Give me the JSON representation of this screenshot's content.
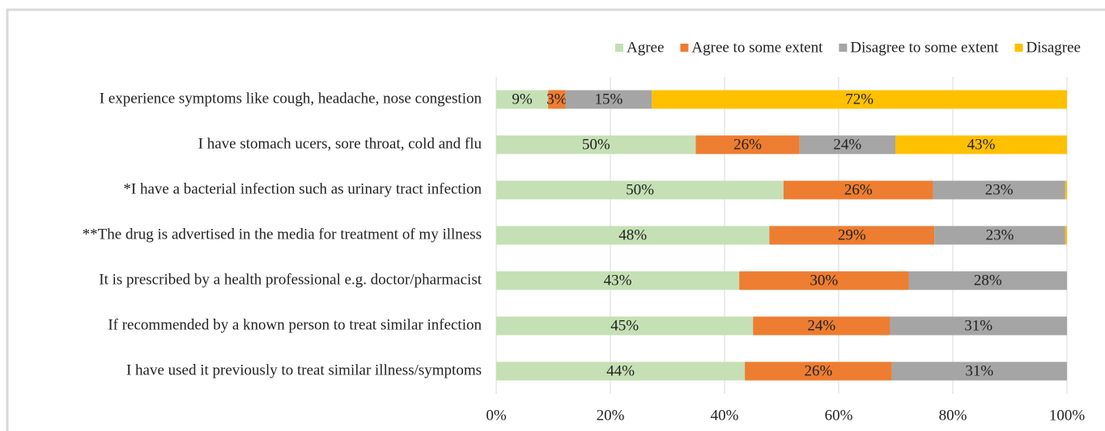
{
  "chart_data": {
    "type": "bar",
    "orientation": "horizontal",
    "stacking": "percent",
    "categories": [
      "I experience symptoms like cough, headache, nose congestion",
      "I have stomach ucers, sore throat, cold and flu",
      "*I have a bacterial infection such as urinary tract infection",
      "**The drug is advertised in the media for treatment of my illness",
      "It is prescribed by a health professional e.g. doctor/pharmacist",
      "If recommended by a known person to treat similar infection",
      "I have used it previously to treat similar illness/symptoms"
    ],
    "series": [
      {
        "name": "Agree",
        "color": "#c5e0b4",
        "values": [
          9,
          50,
          50,
          48,
          43,
          45,
          44
        ],
        "value_labels": [
          "9%",
          "50%",
          "50%",
          "48%",
          "43%",
          "45%",
          "44%"
        ]
      },
      {
        "name": "Agree to some extent",
        "color": "#ed7d31",
        "values": [
          3,
          26,
          26,
          29,
          30,
          24,
          26
        ],
        "value_labels": [
          "3%",
          "26%",
          "26%",
          "29%",
          "30%",
          "24%",
          "26%"
        ]
      },
      {
        "name": "Disagree to some extent",
        "color": "#a5a5a5",
        "values": [
          15,
          24,
          23,
          23,
          28,
          31,
          31
        ],
        "value_labels": [
          "15%",
          "24%",
          "23%",
          "23%",
          "28%",
          "31%",
          "31%"
        ]
      },
      {
        "name": "Disagree",
        "color": "#ffc000",
        "values": [
          72,
          43,
          0.3,
          0.3,
          0,
          0,
          0
        ],
        "value_labels": [
          "72%",
          "43%",
          null,
          null,
          null,
          null,
          null
        ]
      }
    ],
    "xlim": [
      0,
      100
    ],
    "xticks": [
      {
        "value": 0,
        "label": "0%"
      },
      {
        "value": 20,
        "label": "20%"
      },
      {
        "value": 40,
        "label": "40%"
      },
      {
        "value": 60,
        "label": "60%"
      },
      {
        "value": 80,
        "label": "80%"
      },
      {
        "value": 100,
        "label": "100%"
      }
    ],
    "grid": true,
    "legend": "top-right"
  }
}
